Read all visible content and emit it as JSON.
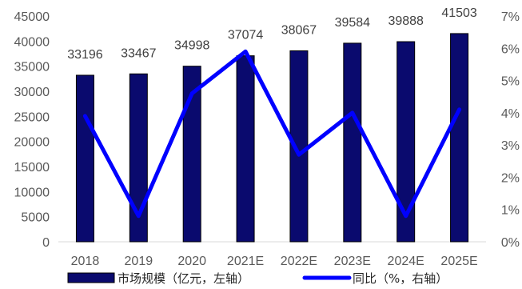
{
  "chart_data": {
    "type": "bar",
    "categories": [
      "2018",
      "2019",
      "2020",
      "2021E",
      "2022E",
      "2023E",
      "2024E",
      "2025E"
    ],
    "series": [
      {
        "name": "市场规模（亿元，左轴）",
        "type": "bar",
        "axis": "left",
        "color": "#0a0a6e",
        "values": [
          33196,
          33467,
          34998,
          37074,
          38067,
          39584,
          39888,
          41503
        ]
      },
      {
        "name": "同比（%，右轴）",
        "type": "line",
        "axis": "right",
        "color": "#0000ff",
        "values": [
          3.9,
          0.8,
          4.6,
          5.9,
          2.7,
          4.0,
          0.8,
          4.1
        ]
      }
    ],
    "data_labels": [
      "33196",
      "33467",
      "34998",
      "37074",
      "38067",
      "39584",
      "39888",
      "41503"
    ],
    "y_left": {
      "ylim": [
        0,
        45000
      ],
      "ticks": [
        "0",
        "5000",
        "10000",
        "15000",
        "20000",
        "25000",
        "30000",
        "35000",
        "40000",
        "45000"
      ]
    },
    "y_right": {
      "ylim": [
        0,
        7
      ],
      "ticks": [
        "0%",
        "1%",
        "2%",
        "3%",
        "4%",
        "5%",
        "6%",
        "7%"
      ]
    },
    "grid": false,
    "legend": "bottom"
  }
}
